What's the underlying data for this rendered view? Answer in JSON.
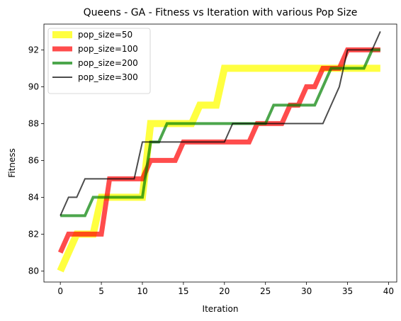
{
  "chart_data": {
    "type": "line",
    "title": "Queens - GA - Fitness vs Iteration with various Pop Size",
    "xlabel": "Iteration",
    "ylabel": "Fitness",
    "xlim": [
      -2,
      41
    ],
    "ylim": [
      79.4,
      93.4
    ],
    "xticks": [
      0,
      5,
      10,
      15,
      20,
      25,
      30,
      35,
      40
    ],
    "yticks": [
      80,
      82,
      84,
      86,
      88,
      90,
      92
    ],
    "grid": false,
    "legend_position": "top-left",
    "series": [
      {
        "name": "pop_size=50",
        "color": "#ffff00",
        "opacity": 0.75,
        "line_width": 10,
        "x": [
          0,
          1,
          2,
          3,
          4,
          5,
          6,
          7,
          8,
          9,
          10,
          11,
          12,
          13,
          14,
          15,
          16,
          17,
          18,
          19,
          20,
          21,
          22,
          23,
          24,
          25,
          26,
          27,
          28,
          29,
          30,
          31,
          32,
          33,
          34,
          35,
          36,
          37,
          38,
          39
        ],
        "y": [
          80,
          81,
          82,
          82,
          82,
          84,
          84,
          84,
          84,
          84,
          84,
          88,
          88,
          88,
          88,
          88,
          88,
          89,
          89,
          89,
          91,
          91,
          91,
          91,
          91,
          91,
          91,
          91,
          91,
          91,
          91,
          91,
          91,
          91,
          91,
          91,
          91,
          91,
          91,
          91
        ]
      },
      {
        "name": "pop_size=100",
        "color": "#ff0000",
        "opacity": 0.7,
        "line_width": 7,
        "x": [
          0,
          1,
          2,
          3,
          4,
          5,
          6,
          7,
          8,
          9,
          10,
          11,
          12,
          13,
          14,
          15,
          16,
          17,
          18,
          19,
          20,
          21,
          22,
          23,
          24,
          25,
          26,
          27,
          28,
          29,
          30,
          31,
          32,
          33,
          34,
          35,
          36,
          37,
          38,
          39
        ],
        "y": [
          81,
          82,
          82,
          82,
          82,
          82,
          85,
          85,
          85,
          85,
          85,
          86,
          86,
          86,
          86,
          87,
          87,
          87,
          87,
          87,
          87,
          87,
          87,
          87,
          88,
          88,
          88,
          88,
          89,
          89,
          90,
          90,
          91,
          91,
          91,
          92,
          92,
          92,
          92,
          92
        ]
      },
      {
        "name": "pop_size=200",
        "color": "#008000",
        "opacity": 0.7,
        "line_width": 4,
        "x": [
          0,
          1,
          2,
          3,
          4,
          5,
          6,
          7,
          8,
          9,
          10,
          11,
          12,
          13,
          14,
          15,
          16,
          17,
          18,
          19,
          20,
          21,
          22,
          23,
          24,
          25,
          26,
          27,
          28,
          29,
          30,
          31,
          32,
          33,
          34,
          35,
          36,
          37,
          38,
          39
        ],
        "y": [
          83,
          83,
          83,
          83,
          84,
          84,
          84,
          84,
          84,
          84,
          84,
          87,
          87,
          88,
          88,
          88,
          88,
          88,
          88,
          88,
          88,
          88,
          88,
          88,
          88,
          88,
          89,
          89,
          89,
          89,
          89,
          89,
          90,
          91,
          91,
          91,
          91,
          91,
          92,
          92
        ]
      },
      {
        "name": "pop_size=300",
        "color": "#000000",
        "opacity": 0.7,
        "line_width": 2,
        "x": [
          0,
          1,
          2,
          3,
          4,
          5,
          6,
          7,
          8,
          9,
          10,
          11,
          12,
          13,
          14,
          15,
          16,
          17,
          18,
          19,
          20,
          21,
          22,
          23,
          24,
          25,
          26,
          27,
          28,
          29,
          30,
          31,
          32,
          33,
          34,
          35,
          36,
          37,
          38,
          39
        ],
        "y": [
          83,
          84,
          84,
          85,
          85,
          85,
          85,
          85,
          85,
          85,
          87,
          87,
          87,
          87,
          87,
          87,
          87,
          87,
          87,
          87,
          87,
          88,
          88,
          88,
          88,
          88,
          88,
          88,
          88,
          88,
          88,
          88,
          88,
          89,
          90,
          92,
          92,
          92,
          92,
          93
        ]
      }
    ]
  }
}
